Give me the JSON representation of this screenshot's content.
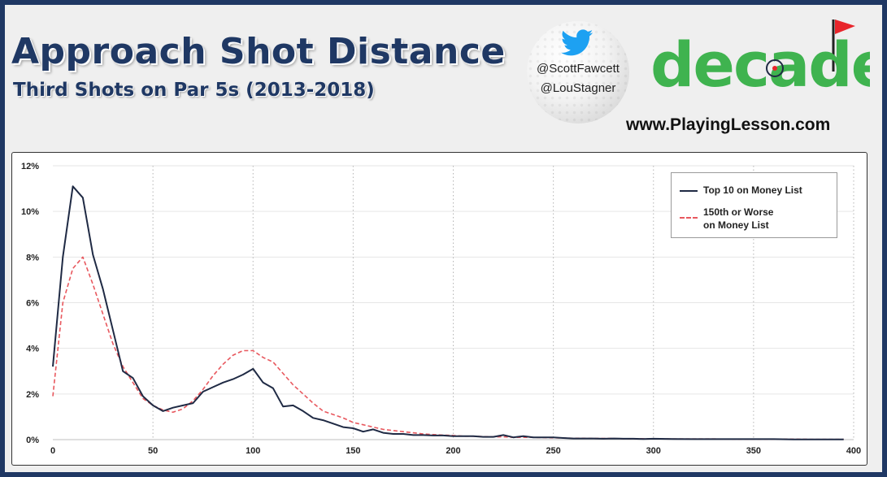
{
  "header": {
    "title": "Approach Shot Distance",
    "subtitle": "Third Shots on Par 5s (2013-2018)",
    "handle_1": "@ScottFawcett",
    "handle_2": "@LouStagner",
    "logo_text": "decade",
    "url": "www.PlayingLesson.com"
  },
  "colors": {
    "navy": "#1f3864",
    "logo_green": "#3fb34f",
    "flag_red": "#e8252b",
    "series_top10": "#1f2a44",
    "series_150th": "#e8585e"
  },
  "chart_data": {
    "type": "line",
    "xlim": [
      0,
      400
    ],
    "ylim": [
      0,
      12
    ],
    "x_ticks": [
      "0",
      "50",
      "100",
      "150",
      "200",
      "250",
      "300",
      "350",
      "400"
    ],
    "y_ticks": [
      "0%",
      "2%",
      "4%",
      "6%",
      "8%",
      "10%",
      "12%"
    ],
    "grid": "vertical dotted",
    "legend_position": "top-right",
    "x": [
      0,
      5,
      10,
      15,
      20,
      25,
      30,
      35,
      40,
      45,
      50,
      55,
      60,
      65,
      70,
      75,
      80,
      85,
      90,
      95,
      100,
      105,
      110,
      115,
      120,
      125,
      130,
      135,
      140,
      145,
      150,
      155,
      160,
      165,
      170,
      175,
      180,
      185,
      190,
      195,
      200,
      205,
      210,
      215,
      220,
      225,
      230,
      235,
      240,
      245,
      250,
      255,
      260,
      265,
      270,
      275,
      280,
      285,
      290,
      295,
      300,
      310,
      320,
      330,
      340,
      350,
      360,
      370,
      380,
      390,
      395
    ],
    "series": [
      {
        "name": "Top 10 on Money List",
        "style": "solid",
        "values": [
          3.2,
          8.0,
          11.1,
          10.6,
          8.1,
          6.6,
          4.8,
          3.0,
          2.7,
          1.9,
          1.5,
          1.25,
          1.4,
          1.5,
          1.6,
          2.1,
          2.3,
          2.5,
          2.65,
          2.85,
          3.1,
          2.5,
          2.25,
          1.45,
          1.5,
          1.25,
          0.95,
          0.85,
          0.7,
          0.55,
          0.5,
          0.35,
          0.45,
          0.3,
          0.25,
          0.25,
          0.2,
          0.2,
          0.18,
          0.18,
          0.15,
          0.15,
          0.15,
          0.12,
          0.12,
          0.2,
          0.1,
          0.15,
          0.1,
          0.1,
          0.1,
          0.07,
          0.05,
          0.05,
          0.05,
          0.04,
          0.05,
          0.04,
          0.04,
          0.03,
          0.04,
          0.03,
          0.02,
          0.02,
          0.02,
          0.02,
          0.02,
          0.01,
          0.01,
          0.01,
          0.01
        ]
      },
      {
        "name": "150th or Worse\non Money List",
        "style": "dashed",
        "values": [
          1.9,
          6.0,
          7.5,
          8.0,
          6.8,
          5.5,
          4.2,
          3.2,
          2.5,
          1.8,
          1.5,
          1.3,
          1.2,
          1.35,
          1.7,
          2.2,
          2.8,
          3.3,
          3.7,
          3.9,
          3.9,
          3.6,
          3.4,
          2.9,
          2.4,
          2.0,
          1.6,
          1.25,
          1.1,
          0.95,
          0.75,
          0.65,
          0.55,
          0.45,
          0.4,
          0.35,
          0.3,
          0.25,
          0.22,
          0.2,
          0.18,
          0.15,
          0.15,
          0.13,
          0.12,
          0.12,
          0.1,
          0.1,
          0.1,
          0.09,
          0.08,
          0.07,
          0.06,
          0.06,
          0.05,
          0.05,
          0.05,
          0.04,
          0.04,
          0.04,
          0.04,
          0.03,
          0.03,
          0.03,
          0.02,
          0.02,
          0.02,
          0.02,
          0.01,
          0.01,
          0.01
        ]
      }
    ]
  }
}
